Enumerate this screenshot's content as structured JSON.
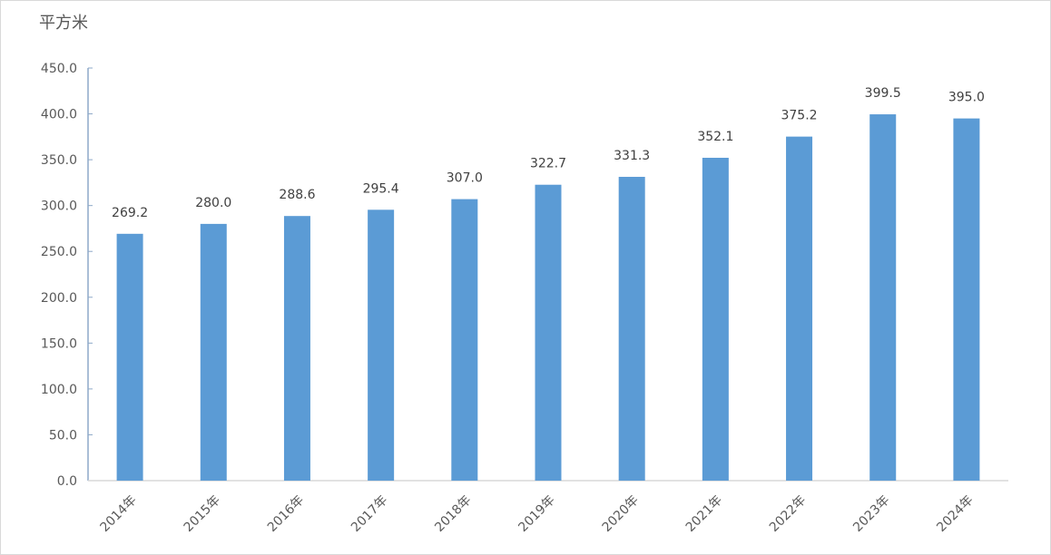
{
  "chart_data": {
    "type": "bar",
    "ylabel": "平方米",
    "categories": [
      "2014年",
      "2015年",
      "2016年",
      "2017年",
      "2018年",
      "2019年",
      "2020年",
      "2021年",
      "2022年",
      "2023年",
      "2024年"
    ],
    "values": [
      269.2,
      280.0,
      288.6,
      295.4,
      307.0,
      322.7,
      331.3,
      352.1,
      375.2,
      399.5,
      395.0
    ],
    "data_labels": [
      "269.2",
      "280.0",
      "288.6",
      "295.4",
      "307.0",
      "322.7",
      "331.3",
      "352.1",
      "375.2",
      "399.5",
      "395.0"
    ],
    "ylim": [
      0,
      450
    ],
    "yticks": [
      "0.0",
      "50.0",
      "100.0",
      "150.0",
      "200.0",
      "250.0",
      "300.0",
      "350.0",
      "400.0",
      "450.0"
    ],
    "grid": false,
    "bar_color": "#5b9bd5"
  }
}
